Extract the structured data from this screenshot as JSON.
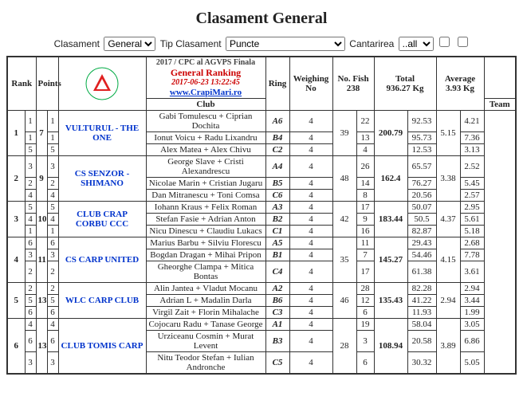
{
  "title": "Clasament General",
  "filters": {
    "clasament_label": "Clasament",
    "clasament_value": "General",
    "tip_label": "Tip Clasament",
    "tip_value": "Puncte",
    "cant_label": "Cantarirea",
    "cant_value": "..all"
  },
  "header": {
    "line1": "2017 / CPC al AGVPS Finala",
    "line2": "General Ranking",
    "line3": "2017-06-23 13:22:45",
    "line4": "www.CrapiMari.ro"
  },
  "cols": {
    "rank": "Rank",
    "points": "Points",
    "club": "Club",
    "team": "Team",
    "ring": "Ring",
    "weigh": "Weighing No",
    "nofish": "No. Fish",
    "nofish_total": "238",
    "total": "Total",
    "total_val": "936.27 Kg",
    "avg": "Average",
    "avg_val": "3.93 Kg"
  },
  "groups": [
    {
      "rank": "1",
      "points": "7",
      "club": "VULTURUL - THE ONE",
      "nofish": "39",
      "total": "200.79",
      "avg": "5.15",
      "rows": [
        {
          "s1": "1",
          "s2": "1",
          "team": "Gabi Tomulescu + Ciprian Dochita",
          "ring": "A6",
          "wno": "4",
          "nf": "22",
          "tot": "92.53",
          "avg": "4.21"
        },
        {
          "s1": "1",
          "s2": "1",
          "team": "Ionut Voicu + Radu Lixandru",
          "ring": "B4",
          "wno": "4",
          "nf": "13",
          "tot": "95.73",
          "avg": "7.36"
        },
        {
          "s1": "5",
          "s2": "5",
          "team": "Alex Matea + Alex Chivu",
          "ring": "C2",
          "wno": "4",
          "nf": "4",
          "tot": "12.53",
          "avg": "3.13"
        }
      ]
    },
    {
      "rank": "2",
      "points": "9",
      "club": "CS SENZOR - SHIMANO",
      "nofish": "48",
      "total": "162.4",
      "avg": "3.38",
      "rows": [
        {
          "s1": "3",
          "s2": "3",
          "team": "George Slave + Cristi Alexandrescu",
          "ring": "A4",
          "wno": "4",
          "nf": "26",
          "tot": "65.57",
          "avg": "2.52"
        },
        {
          "s1": "2",
          "s2": "2",
          "team": "Nicolae Marin + Cristian Jugaru",
          "ring": "B5",
          "wno": "4",
          "nf": "14",
          "tot": "76.27",
          "avg": "5.45"
        },
        {
          "s1": "4",
          "s2": "4",
          "team": "Dan Mitranescu + Toni Comsa",
          "ring": "C6",
          "wno": "4",
          "nf": "8",
          "tot": "20.56",
          "avg": "2.57"
        }
      ]
    },
    {
      "rank": "3",
      "points": "10",
      "club": "CLUB CRAP CORBU CCC",
      "nofish": "42",
      "total": "183.44",
      "avg": "4.37",
      "rows": [
        {
          "s1": "5",
          "s2": "5",
          "team": "Iohann Kraus + Felix Roman",
          "ring": "A3",
          "wno": "4",
          "nf": "17",
          "tot": "50.07",
          "avg": "2.95"
        },
        {
          "s1": "4",
          "s2": "4",
          "team": "Stefan Fasie + Adrian Anton",
          "ring": "B2",
          "wno": "4",
          "nf": "9",
          "tot": "50.5",
          "avg": "5.61"
        },
        {
          "s1": "1",
          "s2": "1",
          "team": "Nicu Dinescu + Claudiu Lukacs",
          "ring": "C1",
          "wno": "4",
          "nf": "16",
          "tot": "82.87",
          "avg": "5.18"
        }
      ]
    },
    {
      "rank": "4",
      "points": "11",
      "club": "CS CARP UNITED",
      "nofish": "35",
      "total": "145.27",
      "avg": "4.15",
      "rows": [
        {
          "s1": "6",
          "s2": "6",
          "team": "Marius Barbu + Silviu Florescu",
          "ring": "A5",
          "wno": "4",
          "nf": "11",
          "tot": "29.43",
          "avg": "2.68"
        },
        {
          "s1": "3",
          "s2": "3",
          "team": "Bogdan Dragan + Mihai Pripon",
          "ring": "B1",
          "wno": "4",
          "nf": "7",
          "tot": "54.46",
          "avg": "7.78"
        },
        {
          "s1": "2",
          "s2": "2",
          "team": "Gheorghe Clampa + Mitica Bontas",
          "ring": "C4",
          "wno": "4",
          "nf": "17",
          "tot": "61.38",
          "avg": "3.61"
        }
      ]
    },
    {
      "rank": "5",
      "points": "13",
      "club": "WLC CARP CLUB",
      "nofish": "46",
      "total": "135.43",
      "avg": "2.94",
      "rows": [
        {
          "s1": "2",
          "s2": "2",
          "team": "Alin Jantea + Vladut Mocanu",
          "ring": "A2",
          "wno": "4",
          "nf": "28",
          "tot": "82.28",
          "avg": "2.94"
        },
        {
          "s1": "5",
          "s2": "5",
          "team": "Adrian L  + Madalin Darla",
          "ring": "B6",
          "wno": "4",
          "nf": "12",
          "tot": "41.22",
          "avg": "3.44"
        },
        {
          "s1": "6",
          "s2": "6",
          "team": "Virgil Zait + Florin Mihalache",
          "ring": "C3",
          "wno": "4",
          "nf": "6",
          "tot": "11.93",
          "avg": "1.99"
        }
      ]
    },
    {
      "rank": "6",
      "points": "13",
      "club": "CLUB TOMIS CARP",
      "nofish": "28",
      "total": "108.94",
      "avg": "3.89",
      "rows": [
        {
          "s1": "4",
          "s2": "4",
          "team": "Cojocaru Radu + Tanase George",
          "ring": "A1",
          "wno": "4",
          "nf": "19",
          "tot": "58.04",
          "avg": "3.05"
        },
        {
          "s1": "6",
          "s2": "6",
          "team": "Urziceanu Cosmin + Murat Levent",
          "ring": "B3",
          "wno": "4",
          "nf": "3",
          "tot": "20.58",
          "avg": "6.86"
        },
        {
          "s1": "3",
          "s2": "3",
          "team": "Nitu Teodor Stefan + Iulian Andronche",
          "ring": "C5",
          "wno": "4",
          "nf": "6",
          "tot": "30.32",
          "avg": "5.05"
        }
      ]
    }
  ]
}
